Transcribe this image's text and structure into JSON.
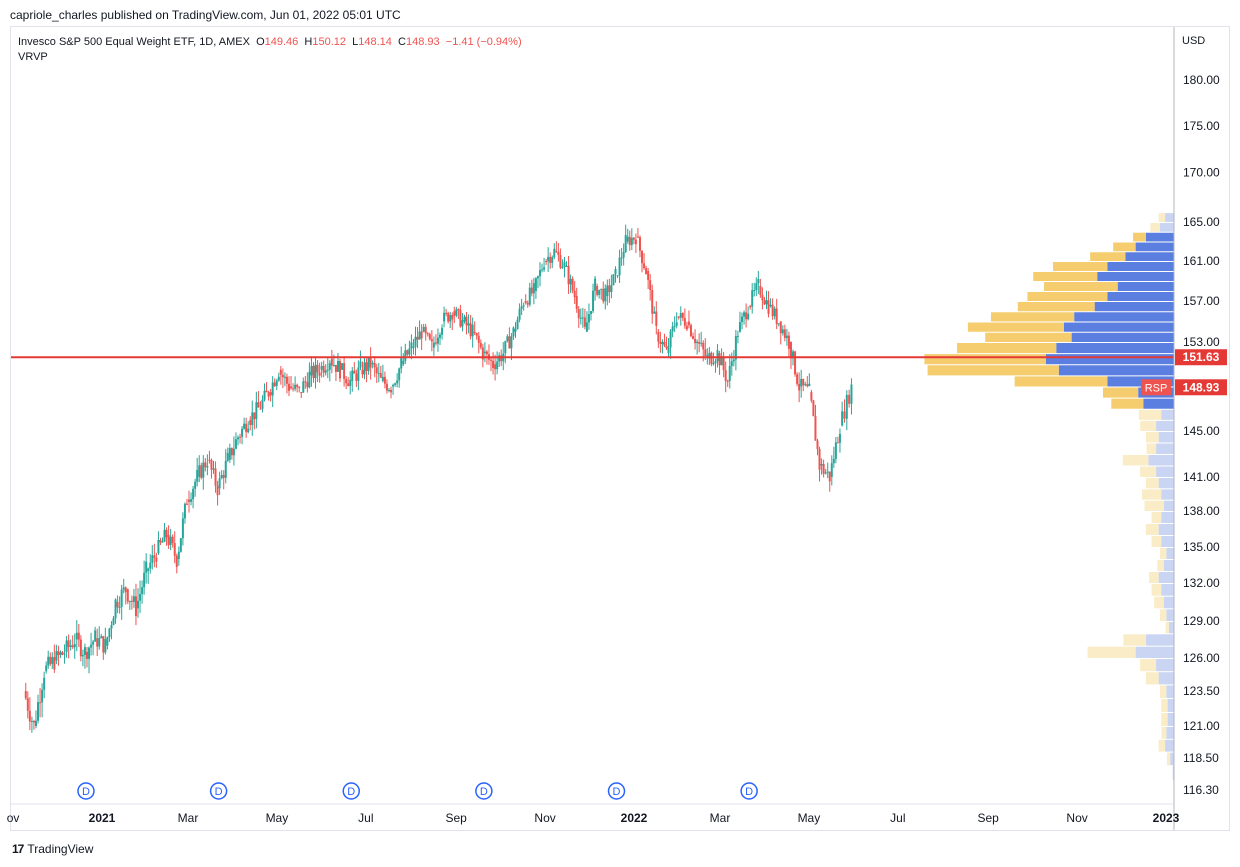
{
  "header": {
    "publisher": "capriole_charles published on TradingView.com, Jun 01, 2022 05:01 UTC"
  },
  "legend": {
    "symbol": "Invesco S&P 500 Equal Weight ETF, 1D, AMEX",
    "open_label": "O",
    "open": "149.46",
    "high_label": "H",
    "high": "150.12",
    "low_label": "L",
    "low": "148.14",
    "close_label": "C",
    "close": "148.93",
    "change": "−1.41 (−0.94%)",
    "indicator": "VRVP"
  },
  "axis": {
    "currency": "USD"
  },
  "footer": {
    "logo_glyph": "17",
    "brand": "TradingView"
  },
  "colors": {
    "up": "#26a69a",
    "down": "#ef5350",
    "level_line": "#e53935",
    "vp_up_strong": "#5b7fe0",
    "vp_down_strong": "#f5cd6e",
    "vp_up_faint": "#c9d5f3",
    "vp_down_faint": "#fbecc8",
    "dividend": "#2962ff"
  },
  "chart_data": {
    "type": "candlestick",
    "y_ticks": [
      "180.00",
      "175.00",
      "170.00",
      "165.00",
      "161.00",
      "157.00",
      "153.00",
      "145.00",
      "141.00",
      "138.00",
      "135.00",
      "132.00",
      "129.00",
      "126.00",
      "123.50",
      "121.00",
      "118.50",
      "116.30"
    ],
    "x_ticks": [
      "ov",
      "2021",
      "Mar",
      "May",
      "Jul",
      "Sep",
      "Nov",
      "2022",
      "Mar",
      "May",
      "Jul",
      "Sep",
      "Nov",
      "2023"
    ],
    "price_labels": [
      {
        "value": 151.63,
        "text": "151.63"
      },
      {
        "value": 148.93,
        "text": "148.93",
        "tag": "RSP"
      }
    ],
    "horizontal_line": 151.63,
    "dividend_markers": {
      "label": "D",
      "dates": [
        "2020-12-21",
        "2021-03-22",
        "2021-06-21",
        "2021-09-20",
        "2021-12-20",
        "2022-03-21"
      ]
    },
    "close_path": [
      [
        "2020-11-09",
        123.5
      ],
      [
        "2020-11-16",
        121.0
      ],
      [
        "2020-11-23",
        125.0
      ],
      [
        "2020-11-30",
        125.8
      ],
      [
        "2020-12-07",
        126.5
      ],
      [
        "2020-12-14",
        127.5
      ],
      [
        "2020-12-21",
        126.5
      ],
      [
        "2020-12-28",
        127.6
      ],
      [
        "2021-01-04",
        127.0
      ],
      [
        "2021-01-11",
        130.5
      ],
      [
        "2021-01-18",
        131.5
      ],
      [
        "2021-01-25",
        130.0
      ],
      [
        "2021-02-01",
        133.0
      ],
      [
        "2021-02-08",
        134.5
      ],
      [
        "2021-02-15",
        136.0
      ],
      [
        "2021-02-22",
        134.0
      ],
      [
        "2021-03-01",
        139.0
      ],
      [
        "2021-03-08",
        141.0
      ],
      [
        "2021-03-15",
        142.5
      ],
      [
        "2021-03-22",
        140.0
      ],
      [
        "2021-03-29",
        142.5
      ],
      [
        "2021-04-05",
        144.5
      ],
      [
        "2021-04-12",
        146.0
      ],
      [
        "2021-04-19",
        147.0
      ],
      [
        "2021-04-26",
        148.5
      ],
      [
        "2021-05-03",
        150.5
      ],
      [
        "2021-05-10",
        149.0
      ],
      [
        "2021-05-17",
        148.5
      ],
      [
        "2021-05-24",
        150.0
      ],
      [
        "2021-05-31",
        150.5
      ],
      [
        "2021-06-07",
        151.5
      ],
      [
        "2021-06-14",
        150.5
      ],
      [
        "2021-06-21",
        149.5
      ],
      [
        "2021-06-28",
        150.5
      ],
      [
        "2021-07-05",
        151.0
      ],
      [
        "2021-07-12",
        149.5
      ],
      [
        "2021-07-19",
        149.0
      ],
      [
        "2021-07-26",
        151.0
      ],
      [
        "2021-08-02",
        152.5
      ],
      [
        "2021-08-09",
        154.0
      ],
      [
        "2021-08-16",
        152.5
      ],
      [
        "2021-08-23",
        155.0
      ],
      [
        "2021-08-30",
        156.0
      ],
      [
        "2021-09-06",
        155.0
      ],
      [
        "2021-09-13",
        154.0
      ],
      [
        "2021-09-20",
        152.0
      ],
      [
        "2021-09-27",
        151.0
      ],
      [
        "2021-10-04",
        152.0
      ],
      [
        "2021-10-11",
        154.0
      ],
      [
        "2021-10-18",
        157.0
      ],
      [
        "2021-10-25",
        158.0
      ],
      [
        "2021-11-01",
        161.0
      ],
      [
        "2021-11-08",
        162.0
      ],
      [
        "2021-11-15",
        160.5
      ],
      [
        "2021-11-22",
        157.5
      ],
      [
        "2021-11-29",
        154.0
      ],
      [
        "2021-12-06",
        158.5
      ],
      [
        "2021-12-13",
        157.5
      ],
      [
        "2021-12-20",
        159.5
      ],
      [
        "2021-12-27",
        163.0
      ],
      [
        "2022-01-03",
        163.5
      ],
      [
        "2022-01-10",
        160.0
      ],
      [
        "2022-01-17",
        154.0
      ],
      [
        "2022-01-24",
        152.0
      ],
      [
        "2022-01-31",
        155.5
      ],
      [
        "2022-02-07",
        155.0
      ],
      [
        "2022-02-14",
        153.0
      ],
      [
        "2022-02-21",
        151.5
      ],
      [
        "2022-02-28",
        152.0
      ],
      [
        "2022-03-07",
        149.5
      ],
      [
        "2022-03-14",
        154.0
      ],
      [
        "2022-03-21",
        156.5
      ],
      [
        "2022-03-28",
        158.5
      ],
      [
        "2022-04-04",
        156.5
      ],
      [
        "2022-04-11",
        155.0
      ],
      [
        "2022-04-18",
        153.0
      ],
      [
        "2022-04-25",
        149.0
      ],
      [
        "2022-05-02",
        148.5
      ],
      [
        "2022-05-09",
        142.0
      ],
      [
        "2022-05-16",
        141.0
      ],
      [
        "2022-05-23",
        145.5
      ],
      [
        "2022-05-31",
        148.93
      ]
    ],
    "volume_profile": [
      {
        "p": 165.0,
        "up": 0.07,
        "dn": 0.04,
        "strong": false
      },
      {
        "p": 164.0,
        "up": 0.11,
        "dn": 0.06,
        "strong": false
      },
      {
        "p": 163.0,
        "up": 0.22,
        "dn": 0.08,
        "strong": true
      },
      {
        "p": 162.0,
        "up": 0.3,
        "dn": 0.14,
        "strong": true
      },
      {
        "p": 161.0,
        "up": 0.38,
        "dn": 0.22,
        "strong": true
      },
      {
        "p": 160.0,
        "up": 0.52,
        "dn": 0.34,
        "strong": true
      },
      {
        "p": 159.0,
        "up": 0.6,
        "dn": 0.4,
        "strong": true
      },
      {
        "p": 158.0,
        "up": 0.44,
        "dn": 0.46,
        "strong": true
      },
      {
        "p": 157.0,
        "up": 0.52,
        "dn": 0.5,
        "strong": true
      },
      {
        "p": 156.0,
        "up": 0.62,
        "dn": 0.48,
        "strong": true
      },
      {
        "p": 155.0,
        "up": 0.78,
        "dn": 0.52,
        "strong": true
      },
      {
        "p": 154.0,
        "up": 0.86,
        "dn": 0.6,
        "strong": true
      },
      {
        "p": 153.0,
        "up": 0.8,
        "dn": 0.54,
        "strong": true
      },
      {
        "p": 152.0,
        "up": 0.92,
        "dn": 0.62,
        "strong": true
      },
      {
        "p": 151.0,
        "up": 1.0,
        "dn": 0.76,
        "strong": true
      },
      {
        "p": 150.0,
        "up": 0.9,
        "dn": 0.82,
        "strong": true
      },
      {
        "p": 149.0,
        "up": 0.52,
        "dn": 0.58,
        "strong": true
      },
      {
        "p": 148.0,
        "up": 0.28,
        "dn": 0.22,
        "strong": true
      },
      {
        "p": 147.0,
        "up": 0.24,
        "dn": 0.2,
        "strong": true
      },
      {
        "p": 146.0,
        "up": 0.1,
        "dn": 0.14,
        "strong": false
      },
      {
        "p": 145.0,
        "up": 0.14,
        "dn": 0.1,
        "strong": false
      },
      {
        "p": 144.0,
        "up": 0.12,
        "dn": 0.08,
        "strong": false
      },
      {
        "p": 143.0,
        "up": 0.14,
        "dn": 0.06,
        "strong": false
      },
      {
        "p": 142.0,
        "up": 0.2,
        "dn": 0.16,
        "strong": false
      },
      {
        "p": 141.0,
        "up": 0.14,
        "dn": 0.1,
        "strong": false
      },
      {
        "p": 140.0,
        "up": 0.12,
        "dn": 0.08,
        "strong": false
      },
      {
        "p": 139.0,
        "up": 0.1,
        "dn": 0.12,
        "strong": false
      },
      {
        "p": 138.0,
        "up": 0.08,
        "dn": 0.12,
        "strong": false
      },
      {
        "p": 137.0,
        "up": 0.1,
        "dn": 0.06,
        "strong": false
      },
      {
        "p": 136.0,
        "up": 0.12,
        "dn": 0.08,
        "strong": false
      },
      {
        "p": 135.0,
        "up": 0.1,
        "dn": 0.06,
        "strong": false
      },
      {
        "p": 134.0,
        "up": 0.06,
        "dn": 0.04,
        "strong": false
      },
      {
        "p": 133.0,
        "up": 0.08,
        "dn": 0.04,
        "strong": false
      },
      {
        "p": 132.0,
        "up": 0.12,
        "dn": 0.06,
        "strong": false
      },
      {
        "p": 131.0,
        "up": 0.1,
        "dn": 0.06,
        "strong": false
      },
      {
        "p": 130.0,
        "up": 0.08,
        "dn": 0.06,
        "strong": false
      },
      {
        "p": 129.0,
        "up": 0.06,
        "dn": 0.04,
        "strong": false
      },
      {
        "p": 128.0,
        "up": 0.04,
        "dn": 0.02,
        "strong": false
      },
      {
        "p": 127.0,
        "up": 0.22,
        "dn": 0.14,
        "strong": false
      },
      {
        "p": 126.0,
        "up": 0.3,
        "dn": 0.3,
        "strong": false
      },
      {
        "p": 125.0,
        "up": 0.14,
        "dn": 0.1,
        "strong": false
      },
      {
        "p": 124.0,
        "up": 0.12,
        "dn": 0.08,
        "strong": false
      },
      {
        "p": 123.0,
        "up": 0.06,
        "dn": 0.04,
        "strong": false
      },
      {
        "p": 122.0,
        "up": 0.05,
        "dn": 0.04,
        "strong": false
      },
      {
        "p": 121.0,
        "up": 0.05,
        "dn": 0.04,
        "strong": false
      },
      {
        "p": 120.0,
        "up": 0.06,
        "dn": 0.03,
        "strong": false
      },
      {
        "p": 119.0,
        "up": 0.07,
        "dn": 0.04,
        "strong": false
      },
      {
        "p": 118.0,
        "up": 0.03,
        "dn": 0.02,
        "strong": false
      },
      {
        "p": 117.0,
        "up": 0.01,
        "dn": 0.0,
        "strong": false
      }
    ]
  }
}
